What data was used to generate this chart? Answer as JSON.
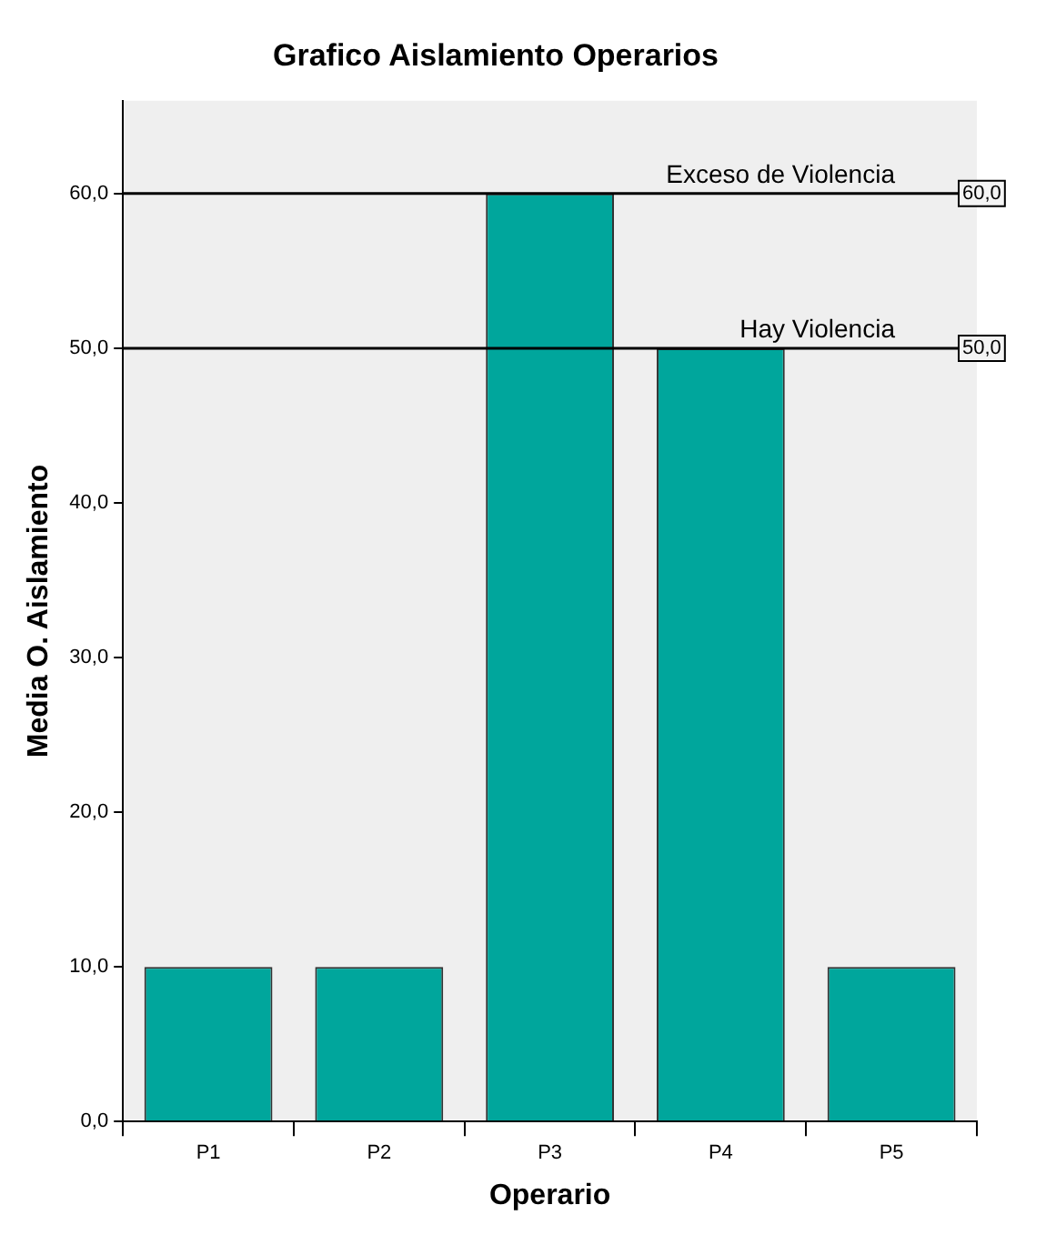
{
  "chart_data": {
    "type": "bar",
    "title": "Grafico Aislamiento Operarios",
    "xlabel": "Operario",
    "ylabel": "Media O. Aislamiento",
    "categories": [
      "P1",
      "P2",
      "P3",
      "P4",
      "P5"
    ],
    "values": [
      10,
      10,
      60,
      50,
      10
    ],
    "color": "#00a69c",
    "ylim": [
      0,
      66
    ],
    "yticks": [
      {
        "value": 0,
        "label": "0,0"
      },
      {
        "value": 10,
        "label": "10,0"
      },
      {
        "value": 20,
        "label": "20,0"
      },
      {
        "value": 30,
        "label": "30,0"
      },
      {
        "value": 40,
        "label": "40,0"
      },
      {
        "value": 50,
        "label": "50,0"
      },
      {
        "value": 60,
        "label": "60,0"
      }
    ],
    "ref_lines": [
      {
        "axis": "y",
        "value": 60,
        "label": "Exceso de Violencia",
        "color": "#000000"
      },
      {
        "axis": "y",
        "value": 50,
        "label": "Hay Violencia",
        "color": "#000000"
      }
    ],
    "annotations": [
      {
        "text": "60,0",
        "y": 60
      },
      {
        "text": "50,0",
        "y": 50
      }
    ],
    "grid": false,
    "legend": false
  }
}
